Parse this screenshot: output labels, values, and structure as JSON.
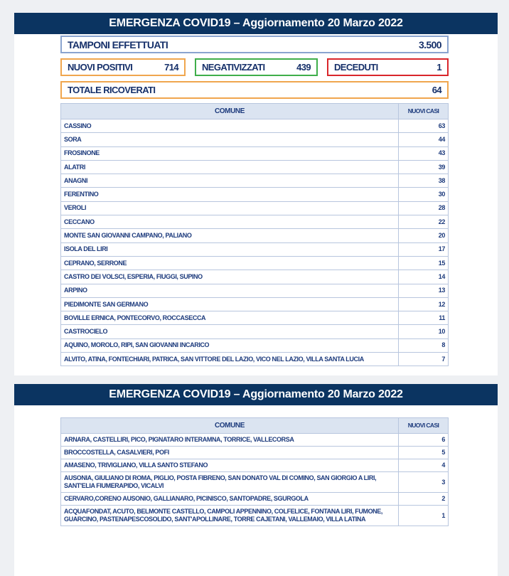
{
  "header_title": "EMERGENZA COVID19 – Aggiornamento 20 Marzo 2022",
  "stats": {
    "tamponi": {
      "label": "TAMPONI EFFETTUATI",
      "value": "3.500",
      "color": "#8aa4cf"
    },
    "positivi": {
      "label": "NUOVI POSITIVI",
      "value": "714",
      "color": "#f0a64e"
    },
    "negativizzati": {
      "label": "NEGATIVIZZATI",
      "value": "439",
      "color": "#3fae4a"
    },
    "deceduti": {
      "label": "DECEDUTI",
      "value": "1",
      "color": "#d9262b"
    },
    "ricoverati": {
      "label": "TOTALE RICOVERATI",
      "value": "64",
      "color": "#f0a64e"
    }
  },
  "table_headers": {
    "comune": "COMUNE",
    "casi": "NUOVI CASI"
  },
  "table1": [
    [
      "CASSINO",
      "63"
    ],
    [
      "SORA",
      "44"
    ],
    [
      "FROSINONE",
      "43"
    ],
    [
      "ALATRI",
      "39"
    ],
    [
      "ANAGNI",
      "38"
    ],
    [
      "FERENTINO",
      "30"
    ],
    [
      "VEROLI",
      "28"
    ],
    [
      "CECCANO",
      "22"
    ],
    [
      "MONTE SAN GIOVANNI CAMPANO, PALIANO",
      "20"
    ],
    [
      "ISOLA DEL LIRI",
      "17"
    ],
    [
      "CEPRANO, SERRONE",
      "15"
    ],
    [
      "CASTRO DEI VOLSCI, ESPERIA, FIUGGI, SUPINO",
      "14"
    ],
    [
      "ARPINO",
      "13"
    ],
    [
      "PIEDIMONTE SAN GERMANO",
      "12"
    ],
    [
      "BOVILLE ERNICA, PONTECORVO, ROCCASECCA",
      "11"
    ],
    [
      "CASTROCIELO",
      "10"
    ],
    [
      "AQUINO, MOROLO, RIPI, SAN GIOVANNI INCARICO",
      "8"
    ],
    [
      "ALVITO, ATINA, FONTECHIARI, PATRICA, SAN VITTORE DEL LAZIO, VICO NEL LAZIO, VILLA SANTA LUCIA",
      "7"
    ]
  ],
  "table2": [
    [
      "ARNARA, CASTELLIRI, PICO, PIGNATARO INTERAMNA, TORRICE, VALLECORSA",
      "6"
    ],
    [
      "BROCCOSTELLA, CASALVIERI, POFI",
      "5"
    ],
    [
      "AMASENO, TRIVIGLIANO, VILLA SANTO STEFANO",
      "4"
    ],
    [
      "AUSONIA, GIULIANO DI ROMA, PIGLIO, POSTA FIBRENO, SAN DONATO VAL DI COMINO, SAN GIORGIO A LIRI, SANT'ELIA FIUMERAPIDO, VICALVI",
      "3"
    ],
    [
      "CERVARO,CORENO AUSONIO, GALLIANARO, PICINISCO, SANTOPADRE, SGURGOLA",
      "2"
    ],
    [
      "ACQUAFONDAT, ACUTO, BELMONTE CASTELLO, CAMPOLI APPENNINO, COLFELICE, FONTANA LIRI, FUMONE, GUARCINO, PASTENAPESCOSOLIDO, SANT'APOLLINARE, TORRE CAJETANI, VALLEMAIO, VILLA LATINA",
      "1"
    ]
  ]
}
